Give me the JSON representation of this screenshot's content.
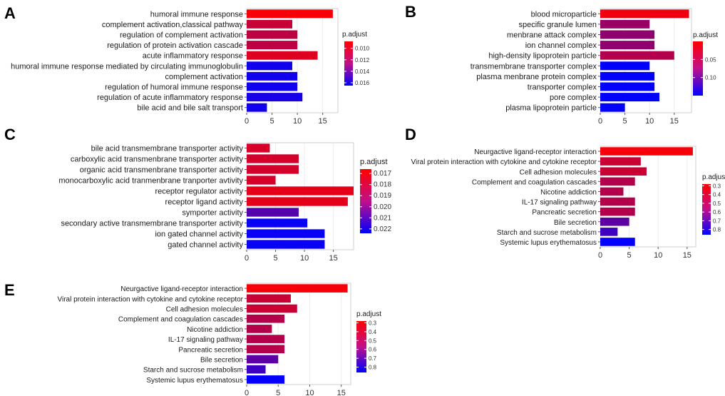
{
  "figure": {
    "panels": [
      "A",
      "B",
      "C",
      "D",
      "E"
    ]
  },
  "chart_data": [
    {
      "panel": "A",
      "type": "bar",
      "orientation": "horizontal",
      "categories": [
        "humoral immune response",
        "complement activation,classical pathway",
        "regulation of complement activation",
        "regulation of protein activation cascade",
        "acute inflammatory response",
        "humoral immune response mediated by circulating immunoglobulin",
        "complement activation",
        "regulation of humoral immune response",
        "regulation of acute inflammatory response",
        "bile acid and bile salt transport"
      ],
      "values": [
        17,
        9,
        10,
        10,
        14,
        9,
        10,
        10,
        11,
        4
      ],
      "p_adjust": [
        0.009,
        0.0105,
        0.0108,
        0.0108,
        0.0098,
        0.016,
        0.016,
        0.016,
        0.0158,
        0.016
      ],
      "xlim": [
        0,
        18
      ],
      "xticks": [
        0,
        5,
        10,
        15
      ],
      "legend": {
        "title": "p.adjust",
        "ticks": [
          "0.010",
          "0.012",
          "0.014",
          "0.016"
        ],
        "tick_values": [
          0.01,
          0.012,
          0.014,
          0.016
        ],
        "range": [
          0.0088,
          0.0165
        ],
        "low_color": "#ff0000",
        "high_color": "#0000ff"
      }
    },
    {
      "panel": "B",
      "type": "bar",
      "orientation": "horizontal",
      "categories": [
        "blood microparticle",
        "specific granule lumen",
        "menbrane attack complex",
        "ion channel complex",
        "high-density lipoprotein particle",
        "transmembrane transporter complex",
        "plasma menbrane protein complex",
        "transporter complex",
        "pore complex",
        "plasma lipoprotein particle"
      ],
      "values": [
        18,
        10,
        11,
        11,
        15,
        10,
        11,
        11,
        12,
        5
      ],
      "p_adjust": [
        0.01,
        0.06,
        0.065,
        0.065,
        0.045,
        0.15,
        0.15,
        0.15,
        0.15,
        0.15
      ],
      "xlim": [
        0,
        18.5
      ],
      "xticks": [
        0,
        5,
        10,
        15
      ],
      "legend": {
        "title": "p.adjust",
        "ticks": [
          "0.05",
          "0.10"
        ],
        "tick_values": [
          0.05,
          0.1
        ],
        "range": [
          0.0,
          0.15
        ],
        "low_color": "#ff0000",
        "high_color": "#0000ff"
      }
    },
    {
      "panel": "C",
      "type": "bar",
      "orientation": "horizontal",
      "categories": [
        "bile acid transmembrane transporter activity",
        "carboxylic acid transmenbrane transporter activity",
        "organic acid transmenbrane transporter activity",
        "monocarboxylic acid tranmenbrane tranporter avtivity",
        "receptor regulator activity",
        "receptor ligand activity",
        "symporter activity",
        "secondary active transmembrane transporter activity",
        "ion gated channel activity",
        "gated channel activity"
      ],
      "values": [
        4,
        9,
        9,
        5,
        18.5,
        17.5,
        9,
        10.5,
        13.5,
        13.5
      ],
      "p_adjust": [
        0.0175,
        0.0176,
        0.0176,
        0.0175,
        0.0172,
        0.0172,
        0.0205,
        0.0222,
        0.0222,
        0.0222
      ],
      "xlim": [
        0,
        18.5
      ],
      "xticks": [
        0,
        5,
        10,
        15
      ],
      "legend": {
        "title": "p.adjust",
        "ticks": [
          "0.017",
          "0.018",
          "0.019",
          "0.020",
          "0.021",
          "0.022"
        ],
        "tick_values": [
          0.017,
          0.018,
          0.019,
          0.02,
          0.021,
          0.022
        ],
        "range": [
          0.0166,
          0.0224
        ],
        "low_color": "#ff0000",
        "high_color": "#0000ff"
      }
    },
    {
      "panel": "D",
      "type": "bar",
      "orientation": "horizontal",
      "categories": [
        "Neurgactive ligand-receptor interaction",
        "Viral protein interaction with cytokine and cytokine receptor",
        "Cell adhesion molecules",
        "Complement and coagulation cascades",
        "Nicotine addiction",
        "IL-17 signaling pathway",
        "Pancreatic secretion",
        "Bile secretion",
        "Starch and sucrose metabolism",
        "Systemic lupus erythematosus"
      ],
      "values": [
        16,
        7,
        8,
        6,
        4,
        6,
        6,
        5,
        3,
        6
      ],
      "p_adjust": [
        0.3,
        0.4,
        0.4,
        0.45,
        0.45,
        0.45,
        0.45,
        0.65,
        0.72,
        0.85
      ],
      "xlim": [
        0,
        16.5
      ],
      "xticks": [
        0,
        5,
        10,
        15
      ],
      "legend": {
        "title": "p.adjust",
        "ticks": [
          "0.3",
          "0.4",
          "0.5",
          "0.6",
          "0.7",
          "0.8"
        ],
        "tick_values": [
          0.3,
          0.4,
          0.5,
          0.6,
          0.7,
          0.8
        ],
        "range": [
          0.28,
          0.86
        ],
        "low_color": "#ff0000",
        "high_color": "#0000ff"
      }
    },
    {
      "panel": "E",
      "type": "bar",
      "orientation": "horizontal",
      "categories": [
        "Neurgactive ligand-receptor interaction",
        "Viral protein interaction with cytokine and cytokine receptor",
        "Cell adhesion molecules",
        "Complement and coagulation cascades",
        "Nicotine addiction",
        "IL-17 signaling pathway",
        "Pancreatic secretion",
        "Bile secretion",
        "Starch and sucrose metabolism",
        "Systemic lupus erythematosus"
      ],
      "values": [
        16,
        7,
        8,
        6,
        4,
        6,
        6,
        5,
        3,
        6
      ],
      "p_adjust": [
        0.3,
        0.4,
        0.4,
        0.45,
        0.45,
        0.45,
        0.45,
        0.65,
        0.72,
        0.85
      ],
      "xlim": [
        0,
        16.5
      ],
      "xticks": [
        0,
        5,
        10,
        15
      ],
      "legend": {
        "title": "p.adjust",
        "ticks": [
          "0.3",
          "0.4",
          "0.5",
          "0.6",
          "0.7",
          "0.8"
        ],
        "tick_values": [
          0.3,
          0.4,
          0.5,
          0.6,
          0.7,
          0.8
        ],
        "range": [
          0.28,
          0.86
        ],
        "low_color": "#ff0000",
        "high_color": "#0000ff"
      }
    }
  ]
}
